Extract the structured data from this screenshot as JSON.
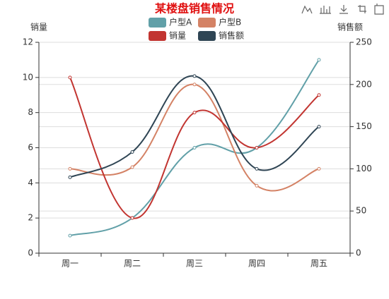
{
  "chart_data": {
    "type": "line",
    "title": "某楼盘销售情况",
    "title_color": "#e01010",
    "y_label": "销量",
    "y2_label": "销售额",
    "smooth": true,
    "grid": true,
    "categories": [
      "周一",
      "周二",
      "周三",
      "周四",
      "周五"
    ],
    "ylim": [
      0,
      12
    ],
    "yticks": [
      0,
      2,
      4,
      6,
      8,
      10,
      12
    ],
    "y2lim": [
      0,
      250
    ],
    "y2ticks": [
      0,
      50,
      100,
      150,
      200,
      250
    ],
    "series": [
      {
        "name": "户型A",
        "color": "#61a0a8",
        "values": [
          1,
          2,
          6,
          6,
          11
        ]
      },
      {
        "name": "户型B",
        "color": "#d48265",
        "axis": "y2",
        "values": [
          100,
          102,
          200,
          80,
          100
        ]
      },
      {
        "name": "销量",
        "color": "#c23531",
        "values": [
          10,
          2,
          8,
          6,
          9
        ]
      },
      {
        "name": "销售额",
        "color": "#2f4554",
        "axis": "y2",
        "values": [
          90,
          120,
          210,
          100,
          150
        ]
      }
    ]
  }
}
